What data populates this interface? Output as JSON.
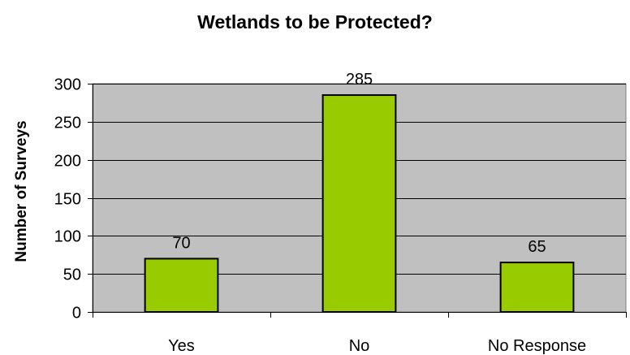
{
  "chart_data": {
    "type": "bar",
    "title": "Wetlands to be Protected?",
    "ylabel": "Number of Surveys",
    "xlabel": "",
    "categories": [
      "Yes",
      "No",
      "No Response"
    ],
    "values": [
      70,
      285,
      65
    ],
    "data_labels": [
      "70",
      "285",
      "65"
    ],
    "ylim": [
      0,
      300
    ],
    "y_ticks": [
      0,
      50,
      100,
      150,
      200,
      250,
      300
    ],
    "grid": true,
    "legend": "none",
    "colors": {
      "bar": "#99cc00",
      "bar_edge": "#000000",
      "plot_background": "#c0c0c0",
      "gridline": "#000000"
    }
  }
}
